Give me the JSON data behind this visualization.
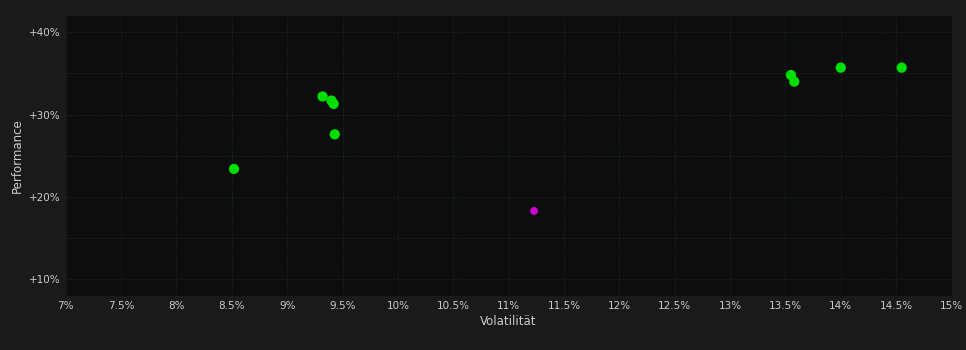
{
  "background_color": "#1a1a1a",
  "plot_bg_color": "#0d0d0d",
  "grid_color": "#1f3a1f",
  "text_color": "#cccccc",
  "xlabel": "Volatilität",
  "ylabel": "Performance",
  "xlim": [
    0.07,
    0.15
  ],
  "ylim": [
    0.08,
    0.42
  ],
  "xticks": [
    0.07,
    0.075,
    0.08,
    0.085,
    0.09,
    0.095,
    0.1,
    0.105,
    0.11,
    0.115,
    0.12,
    0.125,
    0.13,
    0.135,
    0.14,
    0.145,
    0.15
  ],
  "yticks": [
    0.1,
    0.15,
    0.2,
    0.25,
    0.3,
    0.35,
    0.4
  ],
  "ytick_labels": [
    "+10%",
    "",
    "+20%",
    "",
    "+30%",
    "",
    "+40%"
  ],
  "xtick_labels": [
    "7%",
    "7.5%",
    "8%",
    "8.5%",
    "9%",
    "9.5%",
    "10%",
    "10.5%",
    "11%",
    "11.5%",
    "12%",
    "12.5%",
    "13%",
    "13.5%",
    "14%",
    "14.5%",
    "15%"
  ],
  "green_points": [
    [
      0.0932,
      0.322
    ],
    [
      0.094,
      0.317
    ],
    [
      0.0942,
      0.313
    ],
    [
      0.0943,
      0.276
    ],
    [
      0.0852,
      0.234
    ],
    [
      0.1355,
      0.348
    ],
    [
      0.1358,
      0.34
    ],
    [
      0.14,
      0.357
    ],
    [
      0.1455,
      0.357
    ]
  ],
  "magenta_points": [
    [
      0.1123,
      0.183
    ]
  ],
  "green_color": "#00dd00",
  "magenta_color": "#cc00cc",
  "marker_size": 55
}
